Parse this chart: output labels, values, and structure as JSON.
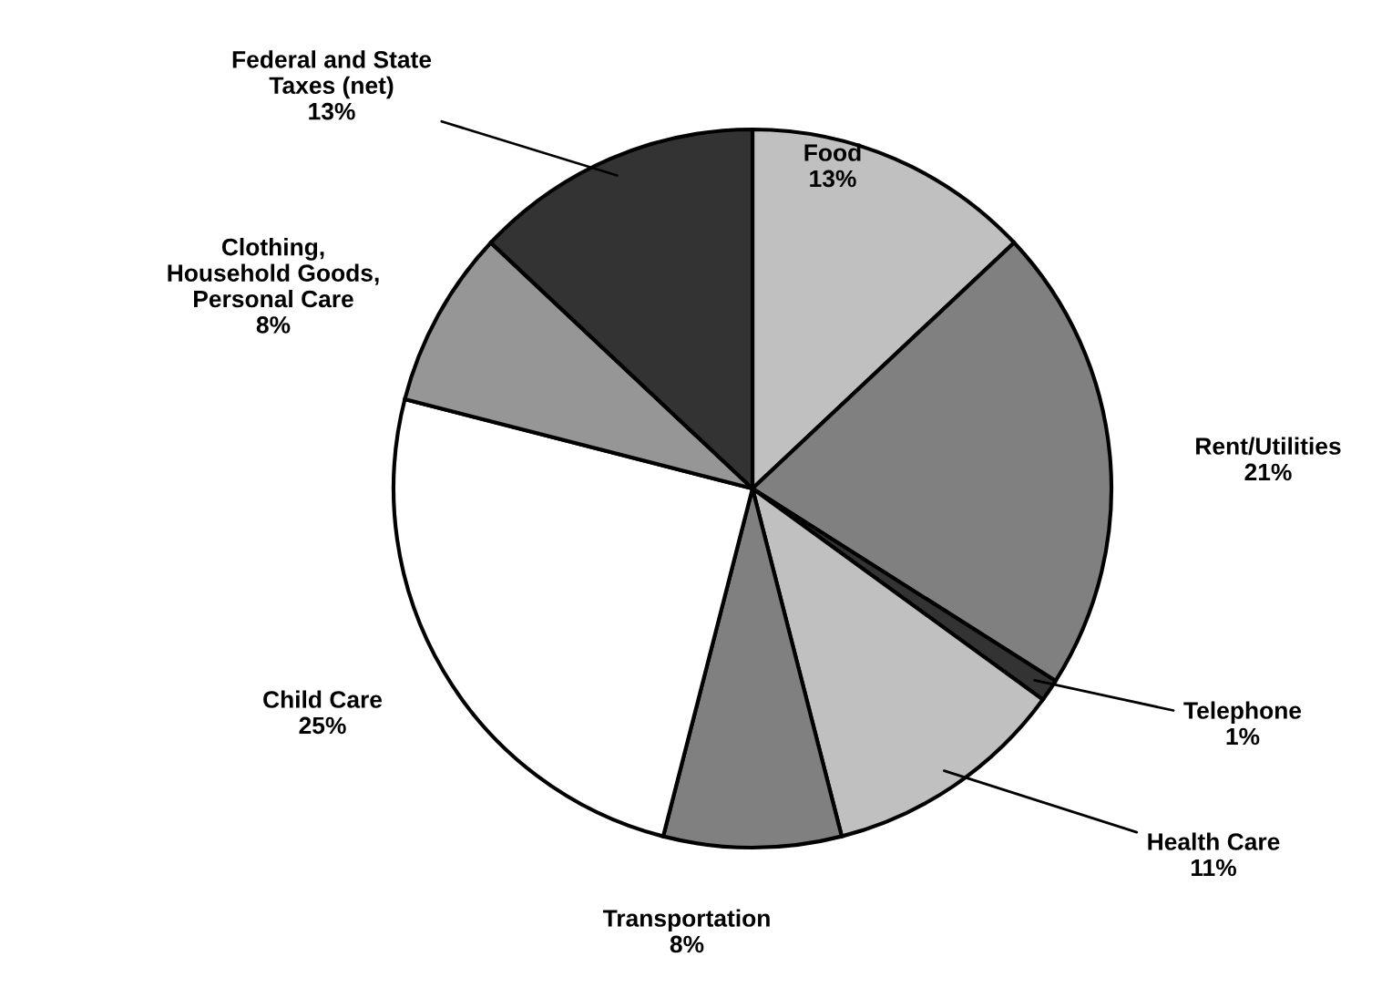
{
  "chart_data": {
    "type": "pie",
    "categories": [
      "Food",
      "Rent/Utilities",
      "Telephone",
      "Health Care",
      "Transportation",
      "Child Care",
      "Clothing,\nHousehold Goods,\nPersonal Care",
      "Federal and State\nTaxes (net)"
    ],
    "values": [
      13,
      21,
      1,
      11,
      8,
      25,
      8,
      13
    ],
    "value_labels": [
      "13%",
      "21%",
      "1%",
      "11%",
      "8%",
      "25%",
      "8%",
      "13%"
    ],
    "colors": [
      "#c0c0c0",
      "#808080",
      "#333333",
      "#c0c0c0",
      "#808080",
      "#ffffff",
      "#969696",
      "#333333"
    ]
  }
}
